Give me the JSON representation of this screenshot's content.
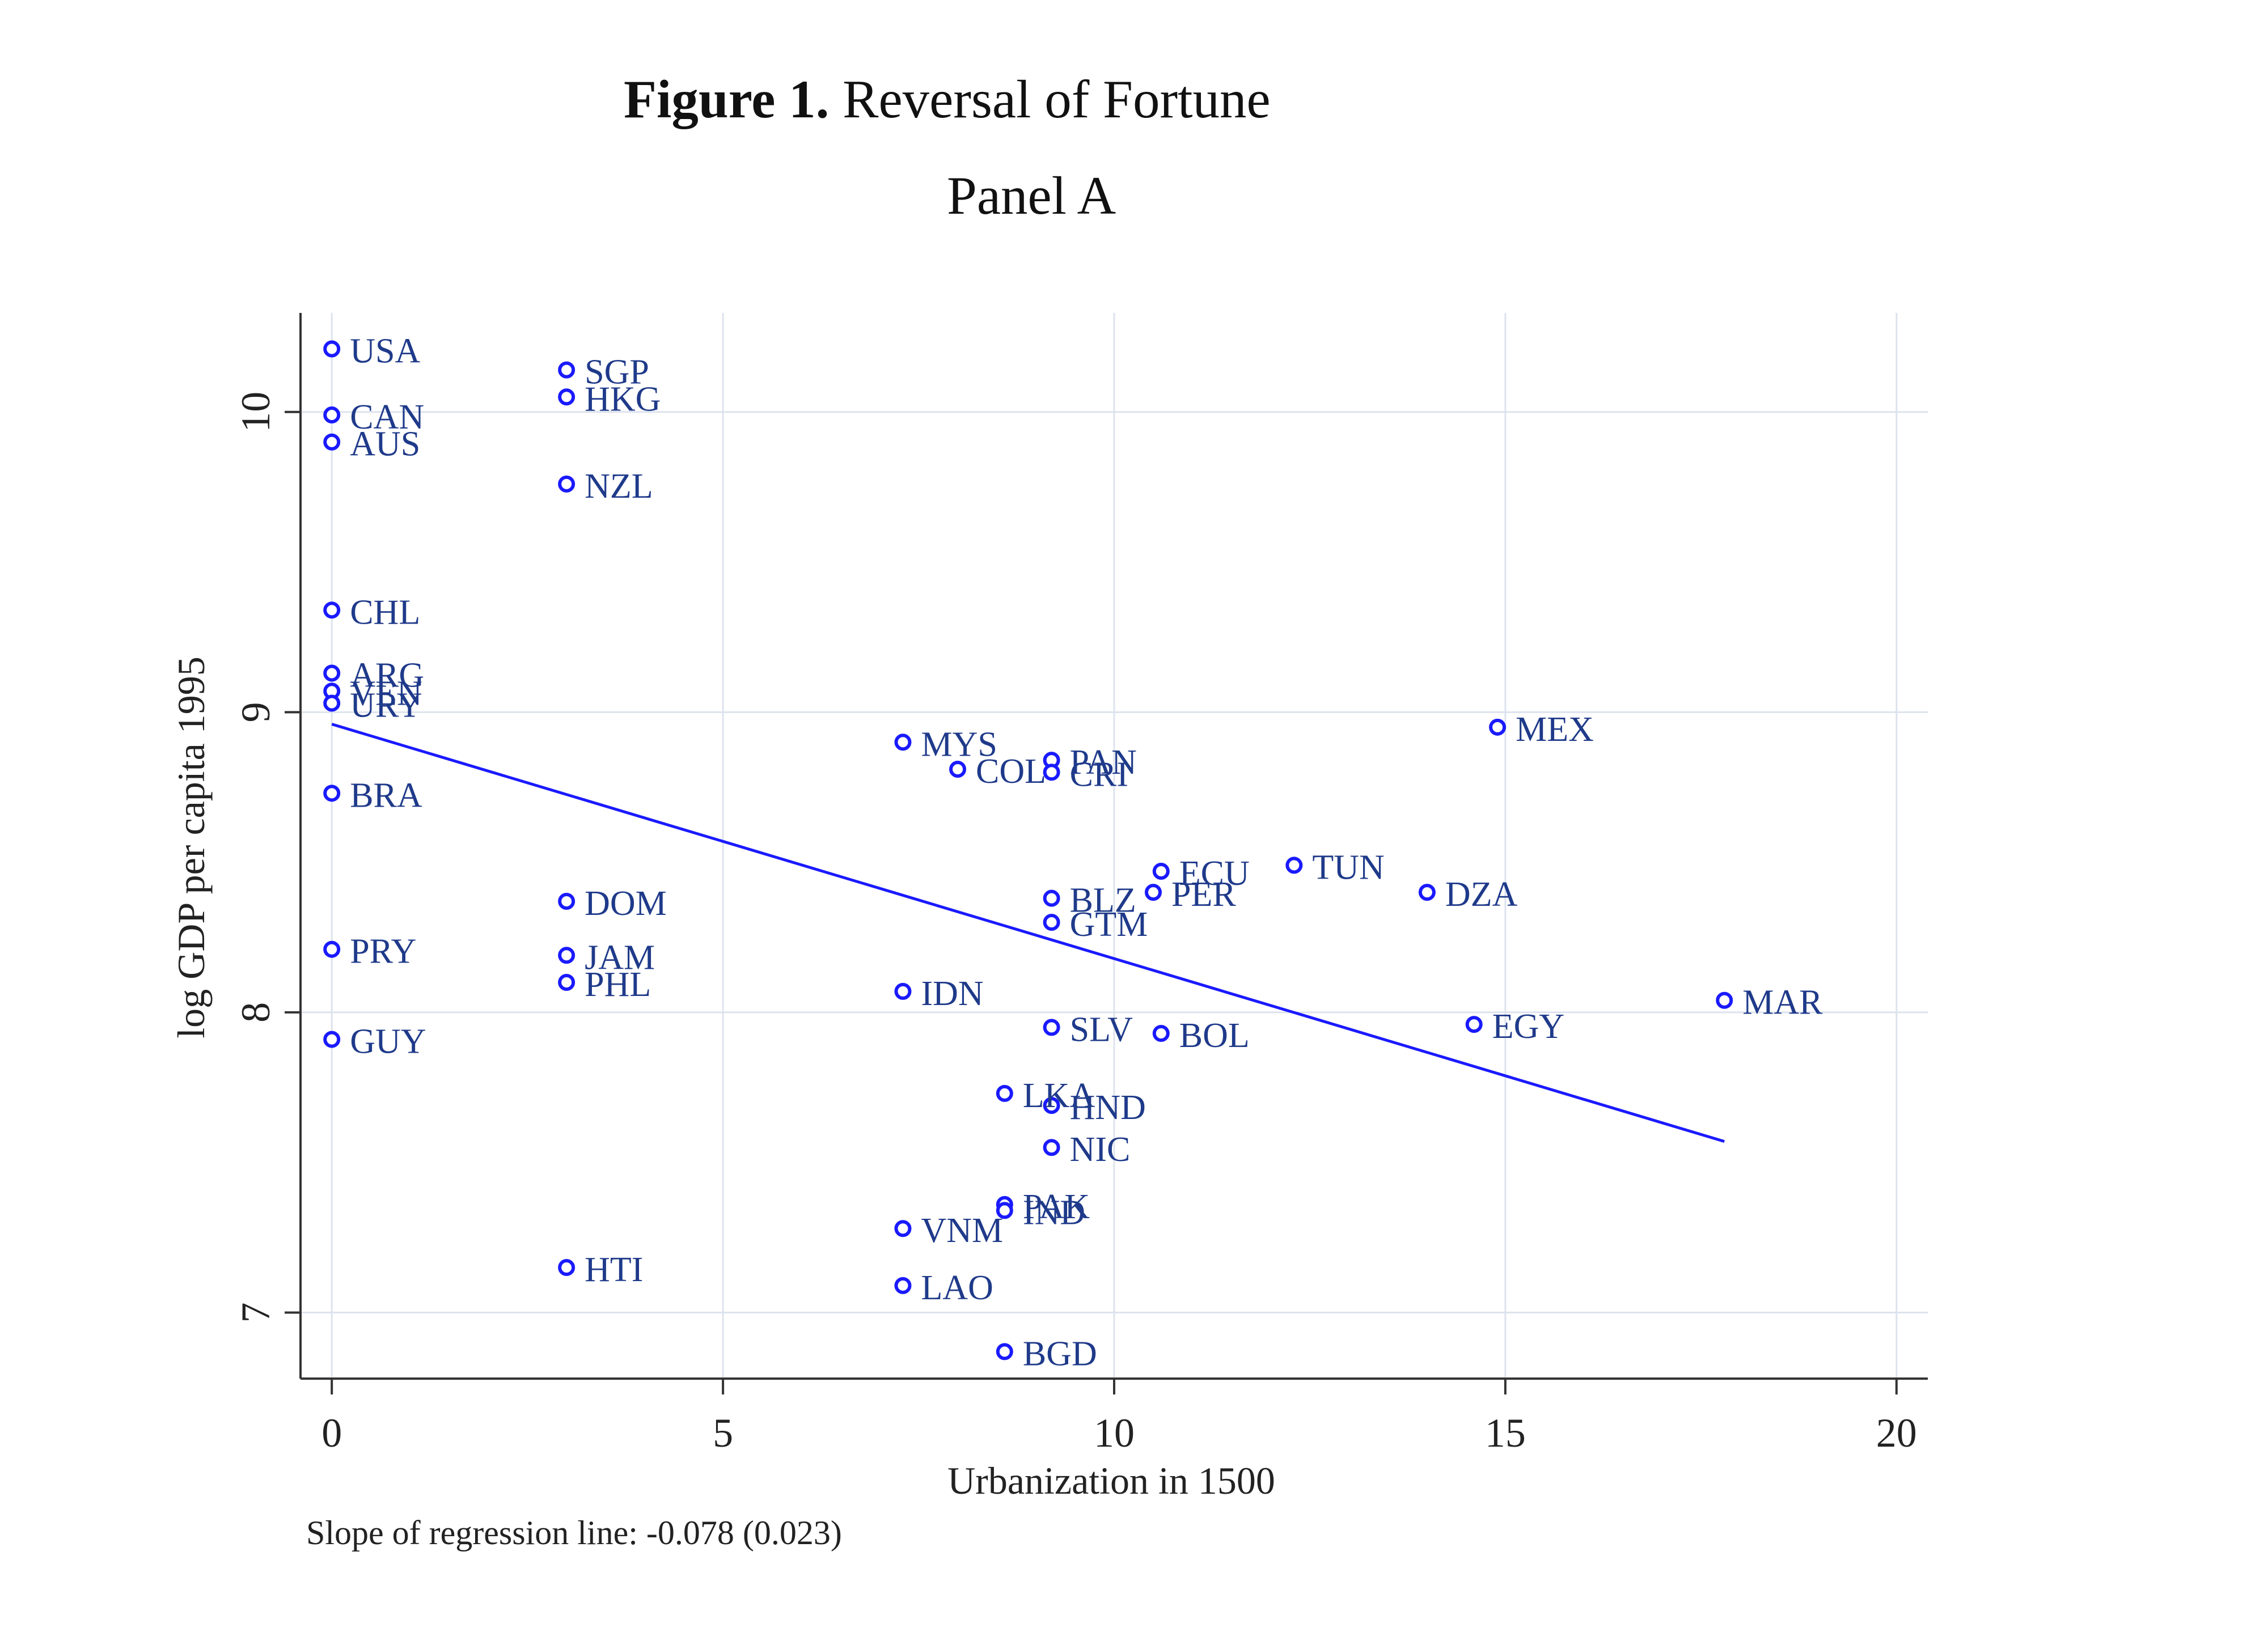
{
  "header": {
    "figure_label": "Figure 1.",
    "figure_title": "Reversal of Fortune",
    "panel": "Panel A"
  },
  "note": "Slope of regression line: -0.078 (0.023)",
  "chart_data": {
    "type": "scatter",
    "xlabel": "Urbanization in 1500",
    "ylabel": "log GDP per capita 1995",
    "xlim": [
      -0.4,
      20.4
    ],
    "ylim": [
      6.78,
      10.33
    ],
    "xticks": [
      0,
      5,
      10,
      15,
      20
    ],
    "yticks": [
      7,
      8,
      9,
      10
    ],
    "grid": true,
    "colors": {
      "points": "#1a1aff",
      "labels": "#1f3a8a",
      "fit": "#1a1aff",
      "axis": "#333333",
      "grid": "#dde3ee"
    },
    "points": [
      {
        "label": "USA",
        "x": 0,
        "y": 10.21
      },
      {
        "label": "CAN",
        "x": 0,
        "y": 9.99
      },
      {
        "label": "AUS",
        "x": 0,
        "y": 9.9
      },
      {
        "label": "CHL",
        "x": 0,
        "y": 9.34
      },
      {
        "label": "ARG",
        "x": 0,
        "y": 9.13
      },
      {
        "label": "VEN",
        "x": 0,
        "y": 9.07
      },
      {
        "label": "URY",
        "x": 0,
        "y": 9.03
      },
      {
        "label": "BRA",
        "x": 0,
        "y": 8.73
      },
      {
        "label": "PRY",
        "x": 0,
        "y": 8.21
      },
      {
        "label": "GUY",
        "x": 0,
        "y": 7.91
      },
      {
        "label": "SGP",
        "x": 3,
        "y": 10.14
      },
      {
        "label": "HKG",
        "x": 3,
        "y": 10.05
      },
      {
        "label": "NZL",
        "x": 3,
        "y": 9.76
      },
      {
        "label": "DOM",
        "x": 3,
        "y": 8.37
      },
      {
        "label": "JAM",
        "x": 3,
        "y": 8.19
      },
      {
        "label": "PHL",
        "x": 3,
        "y": 8.1
      },
      {
        "label": "HTI",
        "x": 3,
        "y": 7.15
      },
      {
        "label": "MYS",
        "x": 7.3,
        "y": 8.9
      },
      {
        "label": "COL",
        "x": 8,
        "y": 8.81
      },
      {
        "label": "PAN",
        "x": 9.2,
        "y": 8.84
      },
      {
        "label": "CRI",
        "x": 9.2,
        "y": 8.8
      },
      {
        "label": "IDN",
        "x": 7.3,
        "y": 8.07
      },
      {
        "label": "VNM",
        "x": 7.3,
        "y": 7.28
      },
      {
        "label": "LAO",
        "x": 7.3,
        "y": 7.09
      },
      {
        "label": "LKA",
        "x": 8.6,
        "y": 7.73
      },
      {
        "label": "PAK",
        "x": 8.6,
        "y": 7.36
      },
      {
        "label": "IND",
        "x": 8.6,
        "y": 7.34
      },
      {
        "label": "BGD",
        "x": 8.6,
        "y": 6.87
      },
      {
        "label": "BLZ",
        "x": 9.2,
        "y": 8.38
      },
      {
        "label": "GTM",
        "x": 9.2,
        "y": 8.3
      },
      {
        "label": "SLV",
        "x": 9.2,
        "y": 7.95
      },
      {
        "label": "HND",
        "x": 9.2,
        "y": 7.69
      },
      {
        "label": "NIC",
        "x": 9.2,
        "y": 7.55
      },
      {
        "label": "ECU",
        "x": 10.6,
        "y": 8.47
      },
      {
        "label": "PER",
        "x": 10.5,
        "y": 8.4
      },
      {
        "label": "BOL",
        "x": 10.6,
        "y": 7.93
      },
      {
        "label": "TUN",
        "x": 12.3,
        "y": 8.49
      },
      {
        "label": "DZA",
        "x": 14,
        "y": 8.4
      },
      {
        "label": "MEX",
        "x": 14.9,
        "y": 8.95
      },
      {
        "label": "EGY",
        "x": 14.6,
        "y": 7.96
      },
      {
        "label": "MAR",
        "x": 17.8,
        "y": 8.04
      }
    ],
    "fit_line": {
      "x": [
        0,
        17.8
      ],
      "y": [
        8.96,
        7.57
      ]
    }
  }
}
